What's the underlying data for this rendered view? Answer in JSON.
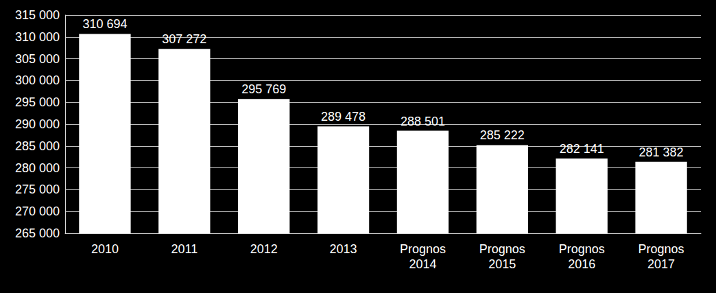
{
  "chart_data": {
    "type": "bar",
    "categories": [
      "2010",
      "2011",
      "2012",
      "2013",
      "Prognos 2014",
      "Prognos 2015",
      "Prognos 2016",
      "Prognos 2017"
    ],
    "values": [
      310694,
      307272,
      295769,
      289478,
      288501,
      285222,
      282141,
      281382
    ],
    "value_labels": [
      "310 694",
      "307 272",
      "295 769",
      "289 478",
      "288 501",
      "285 222",
      "282 141",
      "281 382"
    ],
    "color": "#ffffff",
    "data_labels": true,
    "ylim": [
      265000,
      315000
    ],
    "yticks": [
      {
        "value": 265000,
        "label": "265 000"
      },
      {
        "value": 270000,
        "label": "270 000"
      },
      {
        "value": 275000,
        "label": "275 000"
      },
      {
        "value": 280000,
        "label": "280 000"
      },
      {
        "value": 285000,
        "label": "285 000"
      },
      {
        "value": 290000,
        "label": "290 000"
      },
      {
        "value": 295000,
        "label": "295 000"
      },
      {
        "value": 300000,
        "label": "300 000"
      },
      {
        "value": 305000,
        "label": "305 000"
      },
      {
        "value": 310000,
        "label": "310 000"
      },
      {
        "value": 315000,
        "label": "315 000"
      }
    ],
    "grid": true
  }
}
